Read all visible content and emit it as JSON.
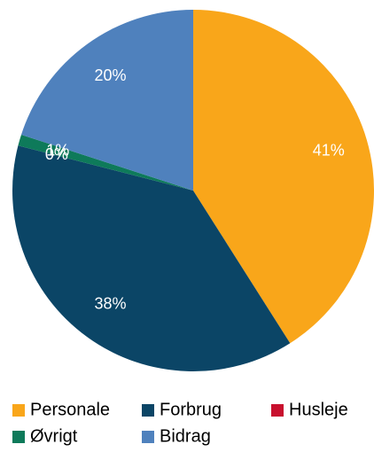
{
  "chart_data": {
    "type": "pie",
    "categories": [
      "Personale",
      "Forbrug",
      "Husleje",
      "Øvrigt",
      "Bidrag"
    ],
    "values": [
      41,
      38,
      0,
      1,
      20
    ],
    "value_labels": [
      "41%",
      "38%",
      "0%",
      "1%",
      "20%"
    ],
    "colors": [
      "#F9A61A",
      "#0B4566",
      "#C8102E",
      "#0E7A5A",
      "#4F81BD"
    ],
    "legend": "bottom"
  }
}
